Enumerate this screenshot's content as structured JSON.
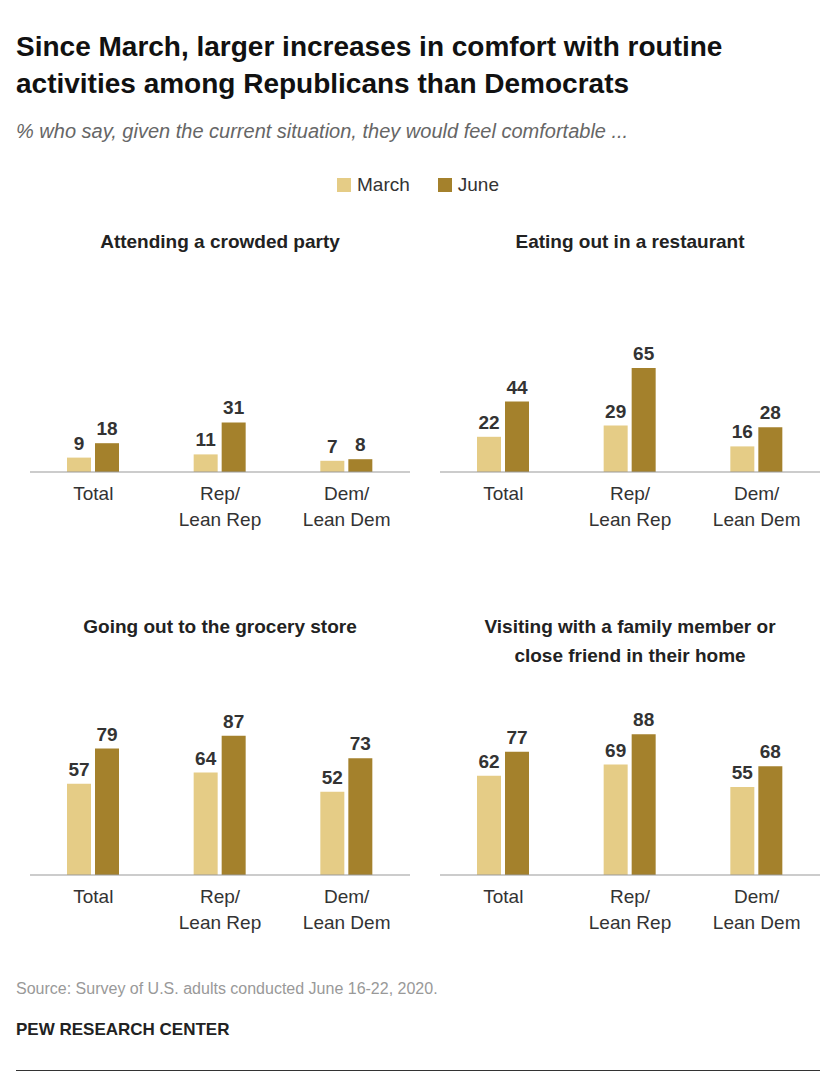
{
  "title": "Since March, larger increases in comfort with routine activities among Republicans than Democrats",
  "subtitle": "% who say, given the current situation, they would feel comfortable ...",
  "source": "Source: Survey of U.S. adults conducted June 16-22, 2020.",
  "credit": "PEW RESEARCH CENTER",
  "chart_data": [
    {
      "type": "bar",
      "title": "Attending a crowded party",
      "categories": [
        "Total",
        "Rep/ Lean Rep",
        "Dem/ Lean Dem"
      ],
      "series": [
        {
          "name": "March",
          "color": "#e5cc86",
          "values": [
            9,
            11,
            7
          ]
        },
        {
          "name": "June",
          "color": "#a4812c",
          "values": [
            18,
            31,
            8
          ]
        }
      ],
      "ylim": [
        0,
        100
      ],
      "data_labels": true,
      "tick_labels": "x",
      "legend": "top"
    },
    {
      "type": "bar",
      "title": "Eating out in a restaurant",
      "categories": [
        "Total",
        "Rep/ Lean Rep",
        "Dem/ Lean Dem"
      ],
      "series": [
        {
          "name": "March",
          "color": "#e5cc86",
          "values": [
            22,
            29,
            16
          ]
        },
        {
          "name": "June",
          "color": "#a4812c",
          "values": [
            44,
            65,
            28
          ]
        }
      ],
      "ylim": [
        0,
        100
      ],
      "data_labels": true,
      "tick_labels": "x"
    },
    {
      "type": "bar",
      "title": "Going out to the grocery store",
      "categories": [
        "Total",
        "Rep/ Lean Rep",
        "Dem/ Lean Dem"
      ],
      "series": [
        {
          "name": "March",
          "color": "#e5cc86",
          "values": [
            57,
            64,
            52
          ]
        },
        {
          "name": "June",
          "color": "#a4812c",
          "values": [
            79,
            87,
            73
          ]
        }
      ],
      "ylim": [
        0,
        100
      ],
      "data_labels": true,
      "tick_labels": "x"
    },
    {
      "type": "bar",
      "title": "Visiting with a family member or close friend in their home",
      "categories": [
        "Total",
        "Rep/ Lean Rep",
        "Dem/ Lean Dem"
      ],
      "series": [
        {
          "name": "March",
          "color": "#e5cc86",
          "values": [
            62,
            69,
            55
          ]
        },
        {
          "name": "June",
          "color": "#a4812c",
          "values": [
            77,
            88,
            68
          ]
        }
      ],
      "ylim": [
        0,
        100
      ],
      "data_labels": true,
      "tick_labels": "x"
    }
  ]
}
